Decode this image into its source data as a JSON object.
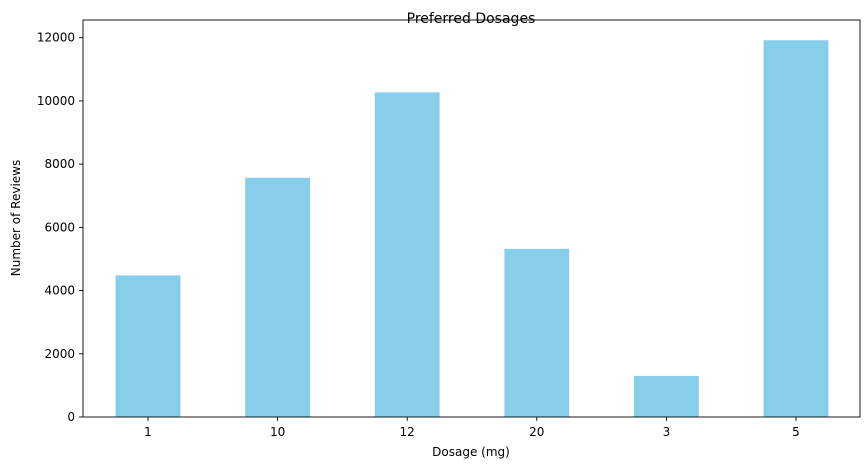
{
  "chart_data": {
    "type": "bar",
    "title": "Preferred Dosages",
    "xlabel": "Dosage (mg)",
    "ylabel": "Number of Reviews",
    "categories": [
      "1",
      "10",
      "12",
      "20",
      "3",
      "5"
    ],
    "values": [
      4480,
      7570,
      10270,
      5320,
      1300,
      11920
    ],
    "ylim": [
      0,
      12560
    ],
    "yticks": [
      0,
      2000,
      4000,
      6000,
      8000,
      10000,
      12000
    ],
    "bar_color": "#87CEEB",
    "grid": false,
    "legend": false
  }
}
